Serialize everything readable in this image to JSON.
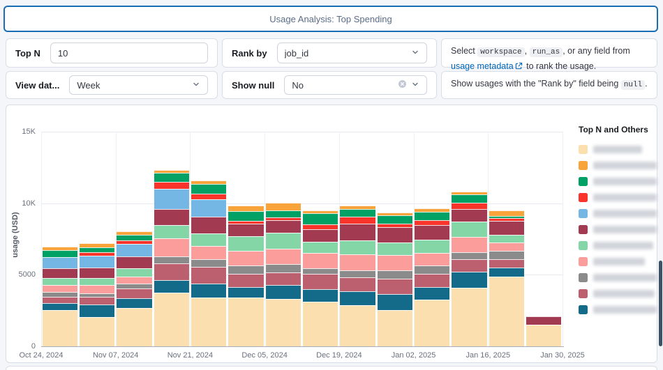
{
  "header": {
    "title": "Usage Analysis: Top Spending"
  },
  "controls": {
    "top_n": {
      "label": "Top N",
      "value": "10"
    },
    "rank_by": {
      "label": "Rank by",
      "value": "job_id"
    },
    "view_date": {
      "label": "View dat...",
      "value": "Week"
    },
    "show_null": {
      "label": "Show null",
      "value": "No"
    }
  },
  "help_rank_by": [
    {
      "t": "tx",
      "v": "Select "
    },
    {
      "t": "code",
      "v": "workspace"
    },
    {
      "t": "tx",
      "v": ", "
    },
    {
      "t": "code",
      "v": "run_as"
    },
    {
      "t": "tx",
      "v": ", or any field from "
    },
    {
      "t": "link",
      "v": "usage metadata"
    },
    {
      "t": "ext"
    },
    {
      "t": "tx",
      "v": " to rank the usage."
    }
  ],
  "help_show_null": [
    {
      "t": "tx",
      "v": "Show usages with the \"Rank by\" field being "
    },
    {
      "t": "code",
      "v": "null"
    },
    {
      "t": "tx",
      "v": "."
    }
  ],
  "chart_data": {
    "type": "bar",
    "stacked": true,
    "title": "",
    "xlabel": "",
    "ylabel": "usage (USD)",
    "ylim": [
      0,
      15000
    ],
    "yticks": [
      "0",
      "5000",
      "10K",
      "15K"
    ],
    "ytick_values": [
      0,
      5000,
      10000,
      15000
    ],
    "grid": true,
    "legend_position": "right",
    "legend_title": "Top N and Others",
    "x": [
      "Oct 24, 2024",
      "Oct 31, 2024",
      "Nov 07, 2024",
      "Nov 14, 2024",
      "Nov 21, 2024",
      "Nov 28, 2024",
      "Dec 05, 2024",
      "Dec 12, 2024",
      "Dec 19, 2024",
      "Dec 26, 2024",
      "Jan 02, 2025",
      "Jan 09, 2025",
      "Jan 16, 2025",
      "Jan 23, 2025"
    ],
    "x_tick_labels": [
      "Oct 24, 2024",
      "Nov 07, 2024",
      "Nov 21, 2024",
      "Dec 05, 2024",
      "Dec 19, 2024",
      "Jan 02, 2025",
      "Jan 16, 2025",
      "Jan 30, 2025"
    ],
    "series": [
      {
        "name": "",
        "label_blurred": true,
        "blur_w": 70,
        "color": "#fbdfaf",
        "values": [
          2540,
          2070,
          2690,
          3750,
          3420,
          3420,
          3300,
          3100,
          2850,
          2530,
          3260,
          4070,
          4890,
          1520
        ]
      },
      {
        "name": "",
        "label_blurred": true,
        "blur_w": 92,
        "color": "#f9a43a",
        "values": [
          240,
          290,
          280,
          230,
          260,
          345,
          570,
          210,
          210,
          200,
          240,
          240,
          400,
          0
        ]
      },
      {
        "name": "",
        "label_blurred": true,
        "blur_w": 104,
        "color": "#00a164",
        "values": [
          490,
          360,
          370,
          620,
          680,
          690,
          490,
          735,
          570,
          620,
          570,
          570,
          160,
          0
        ]
      },
      {
        "name": "",
        "label_blurred": true,
        "blur_w": 92,
        "color": "#f8342b",
        "values": [
          0,
          240,
          240,
          490,
          410,
          210,
          195,
          360,
          460,
          240,
          330,
          410,
          210,
          0
        ]
      },
      {
        "name": "",
        "label_blurred": true,
        "blur_w": 98,
        "color": "#74b7e4",
        "values": [
          780,
          820,
          900,
          1390,
          1190,
          0,
          0,
          0,
          0,
          0,
          0,
          0,
          0,
          0
        ]
      },
      {
        "name": "",
        "label_blurred": true,
        "blur_w": 104,
        "color": "#a23a52",
        "values": [
          680,
          710,
          810,
          1140,
          1170,
          860,
          860,
          860,
          1170,
          1060,
          1060,
          900,
          980,
          570
        ]
      },
      {
        "name": "",
        "label_blurred": true,
        "blur_w": 86,
        "color": "#85d6a7",
        "values": [
          490,
          490,
          570,
          900,
          900,
          1060,
          1140,
          810,
          980,
          900,
          900,
          1060,
          520,
          0
        ]
      },
      {
        "name": "",
        "label_blurred": true,
        "blur_w": 74,
        "color": "#fb9d9b",
        "values": [
          490,
          590,
          490,
          1300,
          900,
          1020,
          1060,
          1060,
          1140,
          1060,
          900,
          1060,
          570,
          0
        ]
      },
      {
        "name": "",
        "label_blurred": true,
        "blur_w": 104,
        "color": "#8b8b8b",
        "values": [
          340,
          230,
          375,
          490,
          570,
          545,
          570,
          410,
          490,
          570,
          570,
          490,
          570,
          0
        ]
      },
      {
        "name": "",
        "label_blurred": true,
        "blur_w": 88,
        "color": "#bc5f6f",
        "values": [
          440,
          540,
          650,
          1140,
          1140,
          940,
          890,
          1050,
          980,
          1060,
          900,
          900,
          620,
          0
        ]
      },
      {
        "name": "",
        "label_blurred": true,
        "blur_w": 100,
        "color": "#136a89",
        "values": [
          490,
          870,
          680,
          890,
          980,
          730,
          980,
          900,
          980,
          1140,
          900,
          1140,
          600,
          0
        ]
      }
    ],
    "stack_order_bottom_to_top": [
      0,
      10,
      9,
      8,
      7,
      6,
      5,
      4,
      3,
      2,
      1
    ]
  }
}
